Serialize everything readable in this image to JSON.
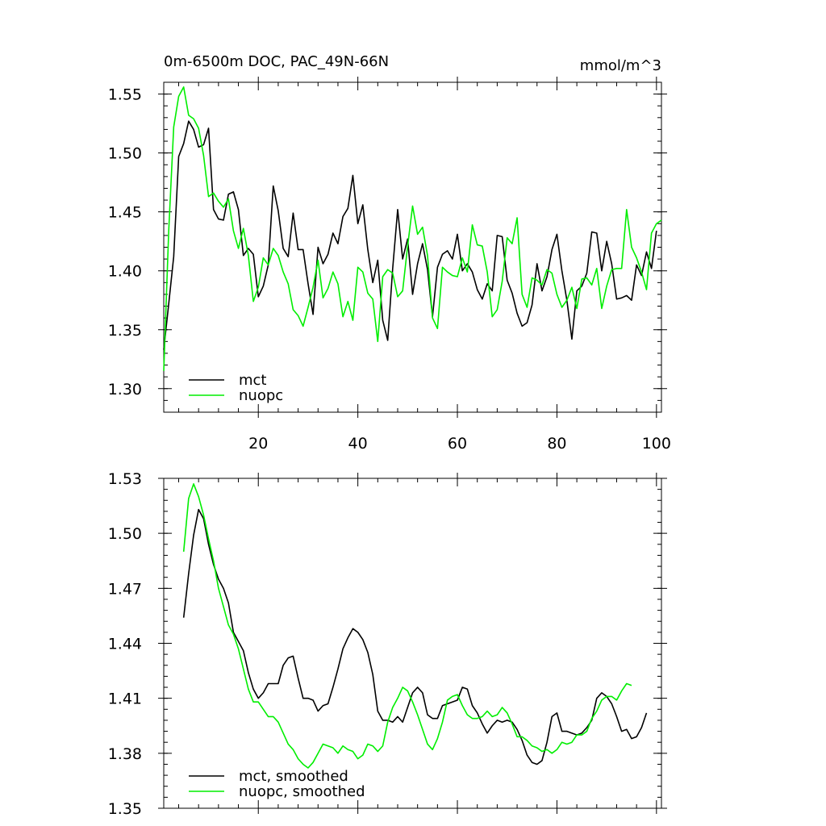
{
  "chart_data": [
    {
      "type": "line",
      "title": "0m-6500m DOC, PAC_49N-66N",
      "units": "mmol/m^3",
      "xlim": [
        1,
        101
      ],
      "ylim": [
        1.28,
        1.56
      ],
      "x_ticks": [
        20,
        40,
        60,
        80,
        100
      ],
      "y_ticks": [
        1.3,
        1.35,
        1.4,
        1.45,
        1.5,
        1.55
      ],
      "y_tick_labels": [
        "1.30",
        "1.35",
        "1.40",
        "1.45",
        "1.50",
        "1.55"
      ],
      "grid": false,
      "legend_position": "bottom-left",
      "series": [
        {
          "name": "mct",
          "color": "#000000",
          "x_start": 1,
          "values": [
            1.333,
            1.372,
            1.412,
            1.497,
            1.508,
            1.527,
            1.52,
            1.505,
            1.507,
            1.521,
            1.452,
            1.444,
            1.443,
            1.465,
            1.467,
            1.452,
            1.413,
            1.419,
            1.414,
            1.378,
            1.387,
            1.405,
            1.472,
            1.451,
            1.419,
            1.412,
            1.449,
            1.418,
            1.418,
            1.389,
            1.363,
            1.42,
            1.406,
            1.414,
            1.432,
            1.423,
            1.446,
            1.453,
            1.481,
            1.44,
            1.456,
            1.418,
            1.39,
            1.409,
            1.358,
            1.341,
            1.402,
            1.452,
            1.41,
            1.427,
            1.38,
            1.406,
            1.423,
            1.401,
            1.361,
            1.403,
            1.414,
            1.417,
            1.41,
            1.431,
            1.4,
            1.406,
            1.399,
            1.384,
            1.376,
            1.389,
            1.383,
            1.43,
            1.429,
            1.392,
            1.381,
            1.364,
            1.353,
            1.356,
            1.371,
            1.406,
            1.383,
            1.395,
            1.418,
            1.431,
            1.4,
            1.375,
            1.342,
            1.383,
            1.387,
            1.398,
            1.433,
            1.432,
            1.4,
            1.425,
            1.406,
            1.376,
            1.377,
            1.379,
            1.375,
            1.405,
            1.396,
            1.416,
            1.402,
            1.434
          ]
        },
        {
          "name": "nuopc",
          "color": "#00ee00",
          "x_start": 1,
          "values": [
            1.315,
            1.434,
            1.522,
            1.548,
            1.556,
            1.532,
            1.529,
            1.521,
            1.498,
            1.463,
            1.466,
            1.459,
            1.454,
            1.461,
            1.434,
            1.419,
            1.436,
            1.413,
            1.374,
            1.386,
            1.411,
            1.405,
            1.419,
            1.413,
            1.399,
            1.389,
            1.367,
            1.362,
            1.353,
            1.369,
            1.386,
            1.409,
            1.377,
            1.385,
            1.399,
            1.389,
            1.361,
            1.374,
            1.358,
            1.403,
            1.399,
            1.381,
            1.376,
            1.34,
            1.395,
            1.401,
            1.398,
            1.378,
            1.383,
            1.421,
            1.455,
            1.431,
            1.437,
            1.413,
            1.36,
            1.351,
            1.403,
            1.399,
            1.396,
            1.395,
            1.411,
            1.399,
            1.439,
            1.422,
            1.421,
            1.399,
            1.361,
            1.367,
            1.391,
            1.428,
            1.423,
            1.445,
            1.38,
            1.369,
            1.394,
            1.392,
            1.388,
            1.401,
            1.398,
            1.38,
            1.369,
            1.375,
            1.386,
            1.368,
            1.393,
            1.394,
            1.388,
            1.402,
            1.368,
            1.387,
            1.401,
            1.402,
            1.402,
            1.452,
            1.42,
            1.411,
            1.399,
            1.384,
            1.432,
            1.44,
            1.443
          ]
        }
      ]
    },
    {
      "type": "line",
      "xlim": [
        1,
        101
      ],
      "ylim": [
        1.35,
        1.53
      ],
      "x_ticks": [
        20,
        40,
        60,
        80,
        100
      ],
      "y_ticks": [
        1.35,
        1.38,
        1.41,
        1.44,
        1.47,
        1.5,
        1.53
      ],
      "y_tick_labels": [
        "1.35",
        "1.38",
        "1.41",
        "1.44",
        "1.47",
        "1.50",
        "1.53"
      ],
      "grid": false,
      "legend_position": "bottom-left",
      "series": [
        {
          "name": "mct, smoothed",
          "color": "#000000",
          "x_start": 5,
          "values": [
            1.454,
            1.478,
            1.499,
            1.513,
            1.508,
            1.494,
            1.483,
            1.475,
            1.47,
            1.462,
            1.446,
            1.441,
            1.436,
            1.424,
            1.415,
            1.41,
            1.413,
            1.418,
            1.418,
            1.418,
            1.428,
            1.432,
            1.433,
            1.421,
            1.41,
            1.41,
            1.409,
            1.403,
            1.406,
            1.407,
            1.416,
            1.426,
            1.437,
            1.443,
            1.448,
            1.446,
            1.442,
            1.435,
            1.423,
            1.403,
            1.398,
            1.398,
            1.397,
            1.4,
            1.397,
            1.405,
            1.413,
            1.416,
            1.413,
            1.401,
            1.399,
            1.399,
            1.406,
            1.407,
            1.408,
            1.409,
            1.416,
            1.415,
            1.406,
            1.402,
            1.396,
            1.391,
            1.395,
            1.398,
            1.397,
            1.398,
            1.397,
            1.393,
            1.387,
            1.379,
            1.375,
            1.374,
            1.376,
            1.386,
            1.4,
            1.402,
            1.392,
            1.392,
            1.391,
            1.39,
            1.391,
            1.394,
            1.398,
            1.41,
            1.413,
            1.411,
            1.407,
            1.4,
            1.392,
            1.393,
            1.388,
            1.389,
            1.394,
            1.402
          ]
        },
        {
          "name": "nuopc, smoothed",
          "color": "#00ee00",
          "x_start": 5,
          "values": [
            1.49,
            1.519,
            1.527,
            1.52,
            1.51,
            1.497,
            1.485,
            1.47,
            1.46,
            1.45,
            1.445,
            1.437,
            1.426,
            1.415,
            1.408,
            1.408,
            1.404,
            1.4,
            1.4,
            1.397,
            1.391,
            1.385,
            1.382,
            1.377,
            1.374,
            1.372,
            1.375,
            1.38,
            1.385,
            1.384,
            1.383,
            1.38,
            1.384,
            1.382,
            1.381,
            1.377,
            1.379,
            1.385,
            1.384,
            1.381,
            1.384,
            1.397,
            1.405,
            1.41,
            1.416,
            1.414,
            1.408,
            1.401,
            1.393,
            1.385,
            1.382,
            1.388,
            1.397,
            1.409,
            1.411,
            1.412,
            1.406,
            1.401,
            1.399,
            1.399,
            1.4,
            1.403,
            1.4,
            1.401,
            1.405,
            1.402,
            1.396,
            1.389,
            1.389,
            1.387,
            1.384,
            1.383,
            1.381,
            1.382,
            1.38,
            1.382,
            1.386,
            1.385,
            1.386,
            1.39,
            1.39,
            1.392,
            1.399,
            1.403,
            1.409,
            1.411,
            1.411,
            1.409,
            1.414,
            1.418,
            1.417
          ]
        }
      ]
    }
  ]
}
